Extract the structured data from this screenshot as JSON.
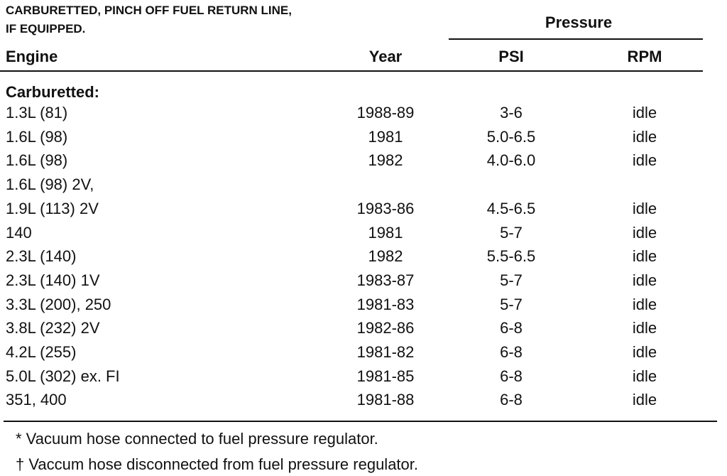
{
  "header": {
    "note_lines": [
      "CARBURETTED, PINCH OFF FUEL RETURN LINE,",
      "IF EQUIPPED."
    ]
  },
  "table": {
    "group_header": "Pressure",
    "columns": [
      "Engine",
      "Year",
      "PSI",
      "RPM"
    ],
    "section": "Carburetted:",
    "rows": [
      [
        "1.3L (81)",
        "1988-89",
        "3-6",
        "idle"
      ],
      [
        "1.6L (98)",
        "1981",
        "5.0-6.5",
        "idle"
      ],
      [
        "1.6L (98)",
        "1982",
        "4.0-6.0",
        "idle"
      ],
      [
        "1.6L (98) 2V,"
      ],
      [
        "1.9L (113) 2V",
        "1983-86",
        "4.5-6.5",
        "idle"
      ],
      [
        "140",
        "1981",
        "5-7",
        "idle"
      ],
      [
        "2.3L (140)",
        "1982",
        "5.5-6.5",
        "idle"
      ],
      [
        "2.3L (140) 1V",
        "1983-87",
        "5-7",
        "idle"
      ],
      [
        "3.3L (200), 250",
        "1981-83",
        "5-7",
        "idle"
      ],
      [
        "3.8L (232) 2V",
        "1982-86",
        "6-8",
        "idle"
      ],
      [
        "4.2L (255)",
        "1981-82",
        "6-8",
        "idle"
      ],
      [
        "5.0L (302) ex. FI",
        "1981-85",
        "6-8",
        "idle"
      ],
      [
        "351, 400",
        "1981-88",
        "6-8",
        "idle"
      ]
    ]
  },
  "footnotes": [
    "* Vacuum hose connected to fuel pressure regulator.",
    "† Vaccum hose disconnected from fuel pressure regulator."
  ]
}
